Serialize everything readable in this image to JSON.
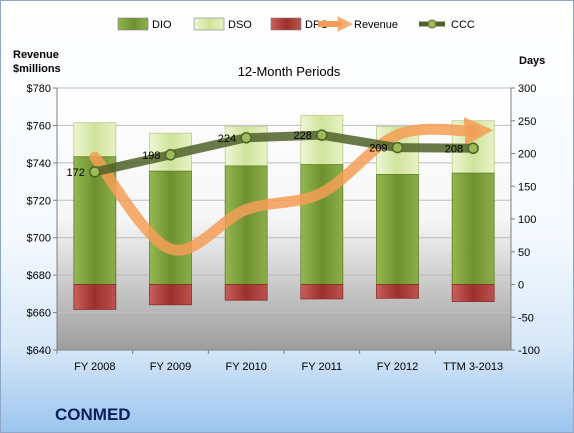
{
  "company_label": "CONMED",
  "chart_data": {
    "type": "bar",
    "title": "12-Month Periods",
    "categories": [
      "FY 2008",
      "FY 2009",
      "FY 2010",
      "FY 2011",
      "FY 2012",
      "TTM 3-2013"
    ],
    "y_left": {
      "label_line1": "Revenue",
      "label_line2": "$millions",
      "range": [
        640,
        780
      ],
      "ticks": [
        "$640",
        "$660",
        "$680",
        "$700",
        "$720",
        "$740",
        "$760",
        "$780"
      ]
    },
    "y_right": {
      "label": "Days",
      "range": [
        -100,
        300
      ],
      "ticks": [
        "-100",
        "-50",
        "0",
        "50",
        "100",
        "150",
        "200",
        "250",
        "300"
      ]
    },
    "legend": {
      "position": "top",
      "items": [
        {
          "label": "DIO",
          "color": "#7fa23a"
        },
        {
          "label": "DSO",
          "color": "#dfedb8"
        },
        {
          "label": "DPO",
          "color": "#c0504d"
        },
        {
          "label": "Revenue",
          "color": "#f59d56"
        },
        {
          "label": "CCC",
          "color": "#4f6228"
        }
      ]
    },
    "series": [
      {
        "name": "DIO",
        "axis": "right",
        "values": [
          195,
          173,
          181,
          183,
          168,
          170
        ]
      },
      {
        "name": "DSO",
        "axis": "right",
        "values": [
          52,
          58,
          60,
          75,
          73,
          80
        ]
      },
      {
        "name": "DPO",
        "axis": "right",
        "values": [
          -38,
          -31,
          -24,
          -22,
          -21,
          -26
        ]
      },
      {
        "name": "Revenue",
        "axis": "left",
        "values": [
          743,
          694,
          715,
          724,
          755,
          757
        ]
      },
      {
        "name": "CCC",
        "axis": "right",
        "values": [
          172,
          198,
          224,
          228,
          209,
          208
        ]
      }
    ],
    "ccc_labels": [
      "172",
      "198",
      "224",
      "228",
      "209",
      "208"
    ],
    "grid": true
  }
}
